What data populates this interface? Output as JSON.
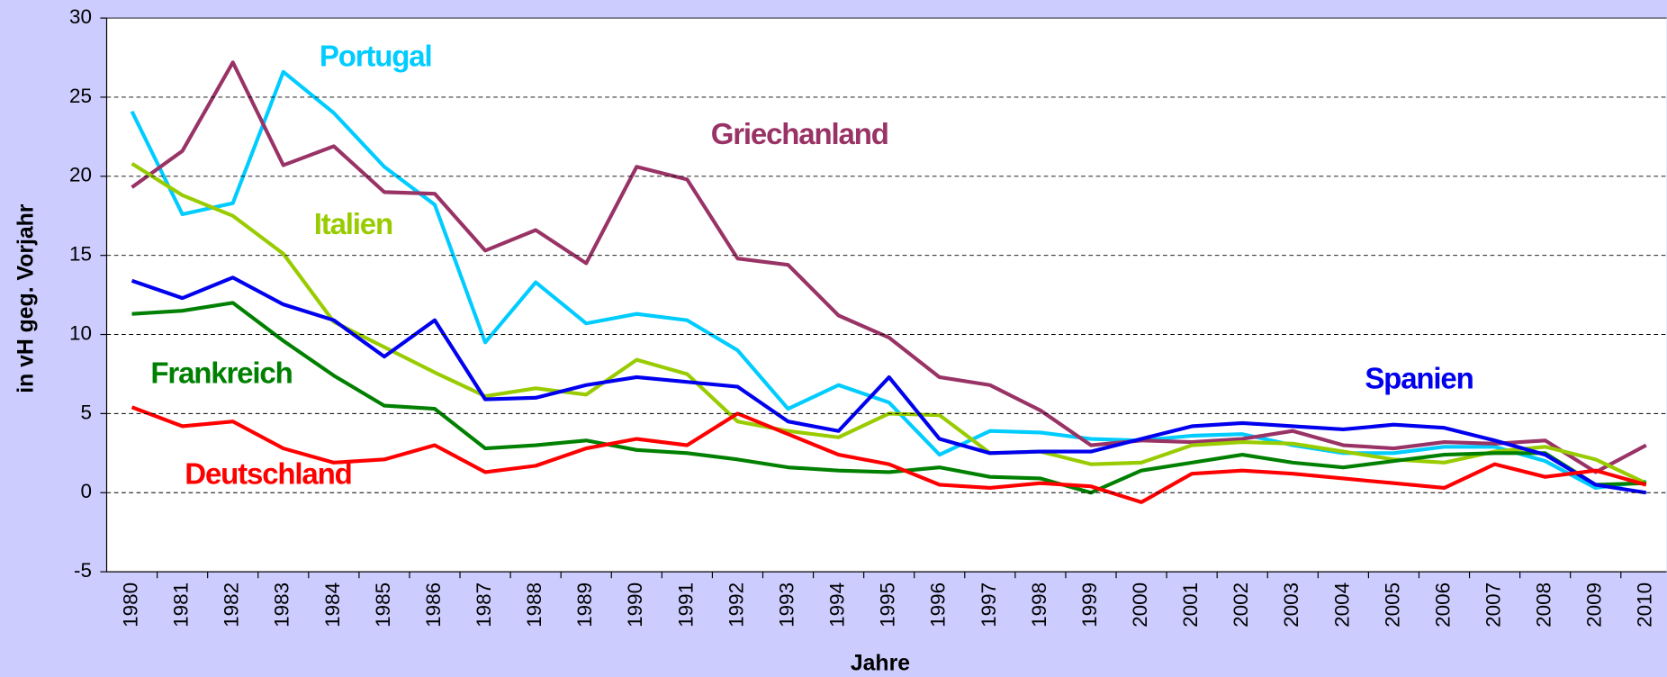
{
  "chart_data": {
    "type": "line",
    "xlabel": "Jahre",
    "ylabel": "in vH geg. Vorjahr",
    "categories": [
      "1980",
      "1981",
      "1982",
      "1983",
      "1984",
      "1985",
      "1986",
      "1987",
      "1988",
      "1989",
      "1990",
      "1991",
      "1992",
      "1993",
      "1994",
      "1995",
      "1996",
      "1997",
      "1998",
      "1999",
      "2000",
      "2001",
      "2002",
      "2003",
      "2004",
      "2005",
      "2006",
      "2007",
      "2008",
      "2009",
      "2010"
    ],
    "ylim": [
      -5,
      30
    ],
    "yticks": [
      -5,
      0,
      5,
      10,
      15,
      20,
      25,
      30
    ],
    "grid": true,
    "series": [
      {
        "name": "Portugal",
        "color": "#00ccff",
        "values": [
          24.1,
          17.6,
          18.3,
          26.6,
          24.0,
          20.6,
          18.2,
          9.5,
          13.3,
          10.7,
          11.3,
          10.9,
          9.0,
          5.3,
          6.8,
          5.7,
          2.4,
          3.9,
          3.8,
          3.4,
          3.3,
          3.6,
          3.7,
          3.0,
          2.5,
          2.5,
          2.9,
          2.9,
          2.0,
          0.3,
          0.7
        ]
      },
      {
        "name": "Griechanland",
        "color": "#993366",
        "values": [
          19.3,
          21.6,
          27.2,
          20.7,
          21.9,
          19.0,
          18.9,
          15.3,
          16.6,
          14.5,
          20.6,
          19.8,
          14.8,
          14.4,
          11.2,
          9.8,
          7.3,
          6.8,
          5.2,
          3.0,
          3.3,
          3.2,
          3.4,
          3.9,
          3.0,
          2.8,
          3.2,
          3.1,
          3.3,
          1.3,
          3.0
        ]
      },
      {
        "name": "Italien",
        "color": "#99cc00",
        "values": [
          20.8,
          18.8,
          17.5,
          15.1,
          10.8,
          9.2,
          7.6,
          6.1,
          6.6,
          6.2,
          8.4,
          7.5,
          4.5,
          3.9,
          3.5,
          5.0,
          4.9,
          2.5,
          2.6,
          1.8,
          1.9,
          3.0,
          3.2,
          3.1,
          2.6,
          2.1,
          1.9,
          2.6,
          2.9,
          2.1,
          0.6
        ]
      },
      {
        "name": "Frankreich",
        "color": "#008000",
        "values": [
          11.3,
          11.5,
          12.0,
          9.6,
          7.4,
          5.5,
          5.3,
          2.8,
          3.0,
          3.3,
          2.7,
          2.5,
          2.1,
          1.6,
          1.4,
          1.3,
          1.6,
          1.0,
          0.9,
          0.0,
          1.4,
          1.9,
          2.4,
          1.9,
          1.6,
          2.0,
          2.4,
          2.5,
          2.5,
          0.5,
          0.6
        ]
      },
      {
        "name": "Spanien",
        "color": "#0000ee",
        "values": [
          13.4,
          12.3,
          13.6,
          11.9,
          10.9,
          8.6,
          10.9,
          5.9,
          6.0,
          6.8,
          7.3,
          7.0,
          6.7,
          4.5,
          3.9,
          7.3,
          3.4,
          2.5,
          2.6,
          2.6,
          3.4,
          4.2,
          4.4,
          4.2,
          4.0,
          4.3,
          4.1,
          3.3,
          2.4,
          0.5,
          0.0
        ]
      },
      {
        "name": "Deutschland",
        "color": "#ff0000",
        "values": [
          5.4,
          4.2,
          4.5,
          2.8,
          1.9,
          2.1,
          3.0,
          1.3,
          1.7,
          2.8,
          3.4,
          3.0,
          5.0,
          3.7,
          2.4,
          1.8,
          0.5,
          0.3,
          0.6,
          0.4,
          -0.6,
          1.2,
          1.4,
          1.2,
          0.9,
          0.6,
          0.3,
          1.8,
          1.0,
          1.4,
          0.5
        ]
      }
    ]
  }
}
